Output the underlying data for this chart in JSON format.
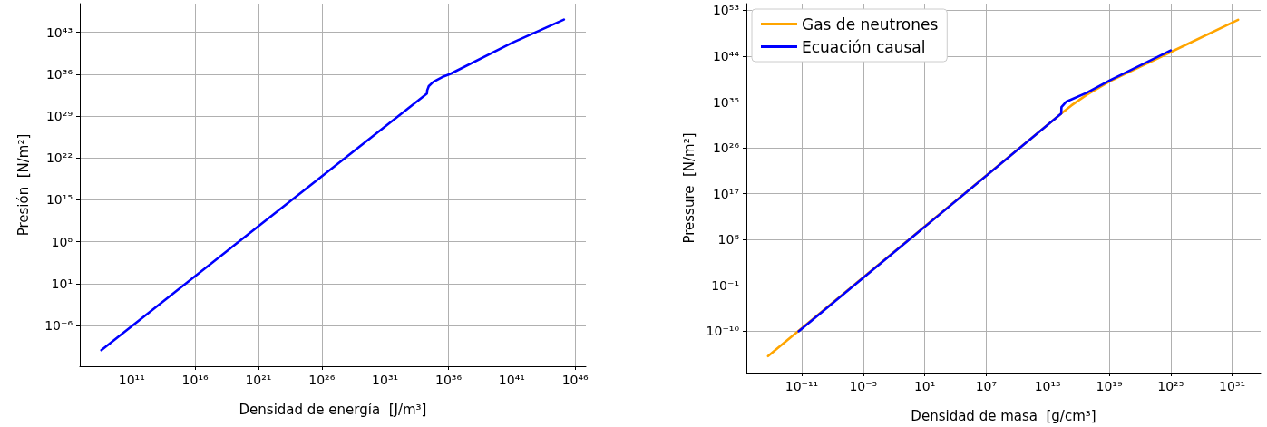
{
  "chart_data": [
    {
      "type": "line",
      "xlabel": "Densidad de energía  [J/m³]",
      "ylabel": "Presión  [N/m²]",
      "log": "xy",
      "grid": true,
      "legend": false,
      "xlim": [
        8000000.0,
        7e+46
      ],
      "ylim": [
        1.6e-13,
        6e+47
      ],
      "xticks": [
        {
          "value": 100000000000.0,
          "label": "10¹¹"
        },
        {
          "value": 1e+16,
          "label": "10¹⁶"
        },
        {
          "value": 1e+21,
          "label": "10²¹"
        },
        {
          "value": 1e+26,
          "label": "10²⁶"
        },
        {
          "value": 1e+31,
          "label": "10³¹"
        },
        {
          "value": 1e+36,
          "label": "10³⁶"
        },
        {
          "value": 1e+41,
          "label": "10⁴¹"
        },
        {
          "value": 1e+46,
          "label": "10⁴⁶"
        }
      ],
      "yticks": [
        {
          "value": 1e-06,
          "label": "10⁻⁶"
        },
        {
          "value": 10,
          "label": "10¹"
        },
        {
          "value": 100000000.0,
          "label": "10⁸"
        },
        {
          "value": 1000000000000000.0,
          "label": "10¹⁵"
        },
        {
          "value": 1e+22,
          "label": "10²²"
        },
        {
          "value": 1e+29,
          "label": "10²⁹"
        },
        {
          "value": 1e+36,
          "label": "10³⁶"
        },
        {
          "value": 1e+43,
          "label": "10⁴³"
        }
      ],
      "series": [
        {
          "color": "#0000ff",
          "x": [
            400000000.0,
            1e+21,
            2e+34,
            2.1e+34,
            2.8e+34,
            6.3e+34,
            3.2e+35,
            1.3e+36,
            1e+41,
            1.3e+45
          ],
          "values": [
            8e-11,
            40000000000.0,
            5.6e+32,
            2e+33,
            1e+34,
            5e+34,
            3.2e+35,
            1e+36,
            1.6e+41,
            1.3e+45
          ]
        }
      ]
    },
    {
      "type": "line",
      "xlabel": "Densidad de masa  [g/cm³]",
      "ylabel": "Pressure  [N/m²]",
      "log": "xy",
      "grid": true,
      "legend": "top left",
      "xlim": [
        4e-17,
        6e+33
      ],
      "ylim": [
        8e-19,
        2e+54
      ],
      "xticks": [
        {
          "value": 1e-11,
          "label": "10⁻¹¹"
        },
        {
          "value": 1e-05,
          "label": "10⁻⁵"
        },
        {
          "value": 10,
          "label": "10¹"
        },
        {
          "value": 10000000.0,
          "label": "10⁷"
        },
        {
          "value": 10000000000000.0,
          "label": "10¹³"
        },
        {
          "value": 1e+19,
          "label": "10¹⁹"
        },
        {
          "value": 1e+25,
          "label": "10²⁵"
        },
        {
          "value": 1e+31,
          "label": "10³¹"
        }
      ],
      "yticks": [
        {
          "value": 1e-10,
          "label": "10⁻¹⁰"
        },
        {
          "value": 0.1,
          "label": "10⁻¹"
        },
        {
          "value": 100000000.0,
          "label": "10⁸"
        },
        {
          "value": 1e+17,
          "label": "10¹⁷"
        },
        {
          "value": 1e+26,
          "label": "10²⁶"
        },
        {
          "value": 1e+35,
          "label": "10³⁵"
        },
        {
          "value": 1e+44,
          "label": "10⁴⁴"
        },
        {
          "value": 1e+53,
          "label": "10⁵³"
        }
      ],
      "series": [
        {
          "name": "Gas de neutrones",
          "color": "#ffa500",
          "x": [
            5.2e-15,
            210000000000000.0,
            2000000000000000.0,
            6.3e+16,
            1.3e+19,
            8e+24,
            3.8e+31
          ],
          "values": [
            1.4e-15,
            5.5e+32,
            2e+34,
            2.5e+36,
            1.3e+39,
            5e+44,
            1.3e+51
          ]
        },
        {
          "name": "Ecuación causal",
          "color": "#0000ff",
          "x": [
            5e-12,
            210000000000000.0,
            220000000000000.0,
            630000000000000.0,
            6.3e+16,
            1.3e+19,
            1e+25
          ],
          "values": [
            1e-10,
            5.5e+32,
            1e+34,
            1.1e+35,
            6.3e+36,
            2e+39,
            1.3e+45
          ]
        }
      ]
    }
  ]
}
